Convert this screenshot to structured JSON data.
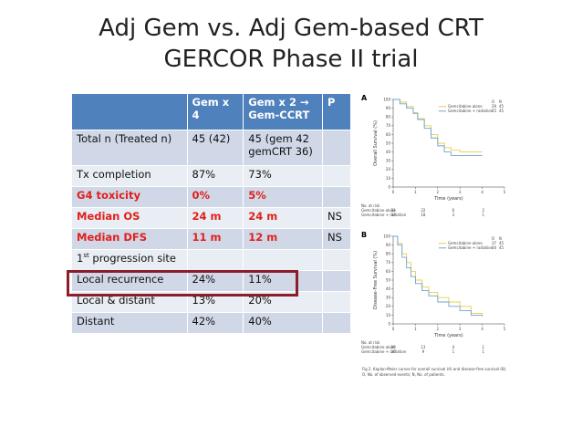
{
  "title": {
    "line1": "Adj Gem vs. Adj Gem-based CRT",
    "line2": "GERCOR Phase II trial"
  },
  "table": {
    "headers": [
      "",
      "Gem x 4",
      "Gem x 2 → Gem-CCRT",
      "P"
    ],
    "rows": [
      {
        "label": "Total n (Treated n)",
        "a": "45 (42)",
        "b": "45 (gem 42 gemCRT 36)",
        "p": "",
        "red": false
      },
      {
        "label": "Tx completion",
        "a": "87%",
        "b": "73%",
        "p": "",
        "red": false
      },
      {
        "label": "G4 toxicity",
        "a": "0%",
        "b": "5%",
        "p": "",
        "red": true
      },
      {
        "label": "Median OS",
        "a": "24 m",
        "b": "24 m",
        "p": "NS",
        "red": true
      },
      {
        "label": "Median DFS",
        "a": "11 m",
        "b": "12 m",
        "p": "NS",
        "red": true
      },
      {
        "label_pre": "1",
        "label_sup": "st",
        "label_post": " progression site",
        "a": "",
        "b": "",
        "p": "",
        "red": false
      },
      {
        "label": "Local recurrence",
        "a": "24%",
        "b": "11%",
        "p": "",
        "red": false
      },
      {
        "label": "Local & distant",
        "a": "13%",
        "b": "20%",
        "p": "",
        "red": false
      },
      {
        "label": "Distant",
        "a": "42%",
        "b": "40%",
        "p": "",
        "red": false
      }
    ]
  },
  "figure": {
    "panel_a": {
      "letter": "A",
      "ylabel": "Overall Survival (%)",
      "xlabel": "Time (years)",
      "legend_header": [
        "O",
        "N"
      ],
      "legend": [
        {
          "name": "Gemcitabine alone",
          "o": "29",
          "n": "45",
          "color": "#e8cf4a"
        },
        {
          "name": "Gemcitabine + radiation",
          "o": "25",
          "n": "45",
          "color": "#6fa3cf"
        }
      ],
      "yticks": [
        "100",
        "90",
        "80",
        "70",
        "60",
        "50",
        "40",
        "30",
        "20",
        "10",
        "0"
      ],
      "xticks": [
        "0",
        "1",
        "2",
        "3",
        "4",
        "5"
      ],
      "at_risk_title": "No. at risk",
      "at_risk": [
        {
          "name": "Gemcitabine alone",
          "values": [
            "33",
            "22",
            "6",
            "2"
          ]
        },
        {
          "name": "Gemcitabine + radiation",
          "values": [
            "33",
            "18",
            "3",
            "1"
          ]
        }
      ]
    },
    "panel_b": {
      "letter": "B",
      "ylabel": "Disease-Free Survival (%)",
      "xlabel": "Time (years)",
      "legend_header": [
        "O",
        "N"
      ],
      "legend": [
        {
          "name": "Gemcitabine alone",
          "o": "37",
          "n": "45",
          "color": "#e8cf4a"
        },
        {
          "name": "Gemcitabine + radiation",
          "o": "34",
          "n": "45",
          "color": "#6fa3cf"
        }
      ],
      "yticks": [
        "100",
        "90",
        "80",
        "70",
        "60",
        "50",
        "40",
        "30",
        "20",
        "10",
        "0"
      ],
      "xticks": [
        "0",
        "1",
        "2",
        "3",
        "4",
        "5"
      ],
      "at_risk_title": "No. at risk",
      "at_risk": [
        {
          "name": "Gemcitabine alone",
          "values": [
            "20",
            "13",
            "4",
            "1"
          ]
        },
        {
          "name": "Gemcitabine + radiation",
          "values": [
            "20",
            "9",
            "1",
            "1"
          ]
        }
      ]
    },
    "caption_line1": "Fig 2. Kaplan-Meier curves for overall survival (A) and disease-free survival (B).",
    "caption_line2": "O, No. of observed events; N, No. of patients."
  },
  "chart_data": [
    {
      "type": "line",
      "title": "",
      "xlabel": "Time (years)",
      "ylabel": "Overall Survival (%)",
      "xlim": [
        0,
        5
      ],
      "ylim": [
        0,
        100
      ],
      "series": [
        {
          "name": "Gemcitabine alone",
          "x": [
            0,
            0.3,
            0.6,
            0.9,
            1.1,
            1.4,
            1.7,
            2.0,
            2.3,
            2.6,
            3.0,
            3.5,
            4.0
          ],
          "y": [
            100,
            97,
            92,
            85,
            78,
            70,
            60,
            50,
            45,
            42,
            40,
            40,
            40
          ]
        },
        {
          "name": "Gemcitabine + radiation",
          "x": [
            0,
            0.3,
            0.6,
            0.9,
            1.1,
            1.4,
            1.7,
            2.0,
            2.3,
            2.6,
            3.0,
            3.5,
            4.0
          ],
          "y": [
            100,
            95,
            90,
            84,
            77,
            67,
            56,
            47,
            40,
            36,
            36,
            36,
            36
          ]
        }
      ]
    },
    {
      "type": "line",
      "title": "",
      "xlabel": "Time (years)",
      "ylabel": "Disease-Free Survival (%)",
      "xlim": [
        0,
        5
      ],
      "ylim": [
        0,
        100
      ],
      "series": [
        {
          "name": "Gemcitabine alone",
          "x": [
            0,
            0.2,
            0.4,
            0.6,
            0.8,
            1.0,
            1.3,
            1.6,
            2.0,
            2.5,
            3.0,
            3.5,
            4.0
          ],
          "y": [
            100,
            92,
            80,
            70,
            60,
            50,
            42,
            36,
            30,
            25,
            20,
            12,
            8
          ]
        },
        {
          "name": "Gemcitabine + radiation",
          "x": [
            0,
            0.2,
            0.4,
            0.6,
            0.8,
            1.0,
            1.3,
            1.6,
            2.0,
            2.5,
            3.0,
            3.5,
            4.0
          ],
          "y": [
            100,
            90,
            76,
            64,
            54,
            46,
            38,
            32,
            25,
            20,
            15,
            10,
            10
          ]
        }
      ]
    }
  ]
}
